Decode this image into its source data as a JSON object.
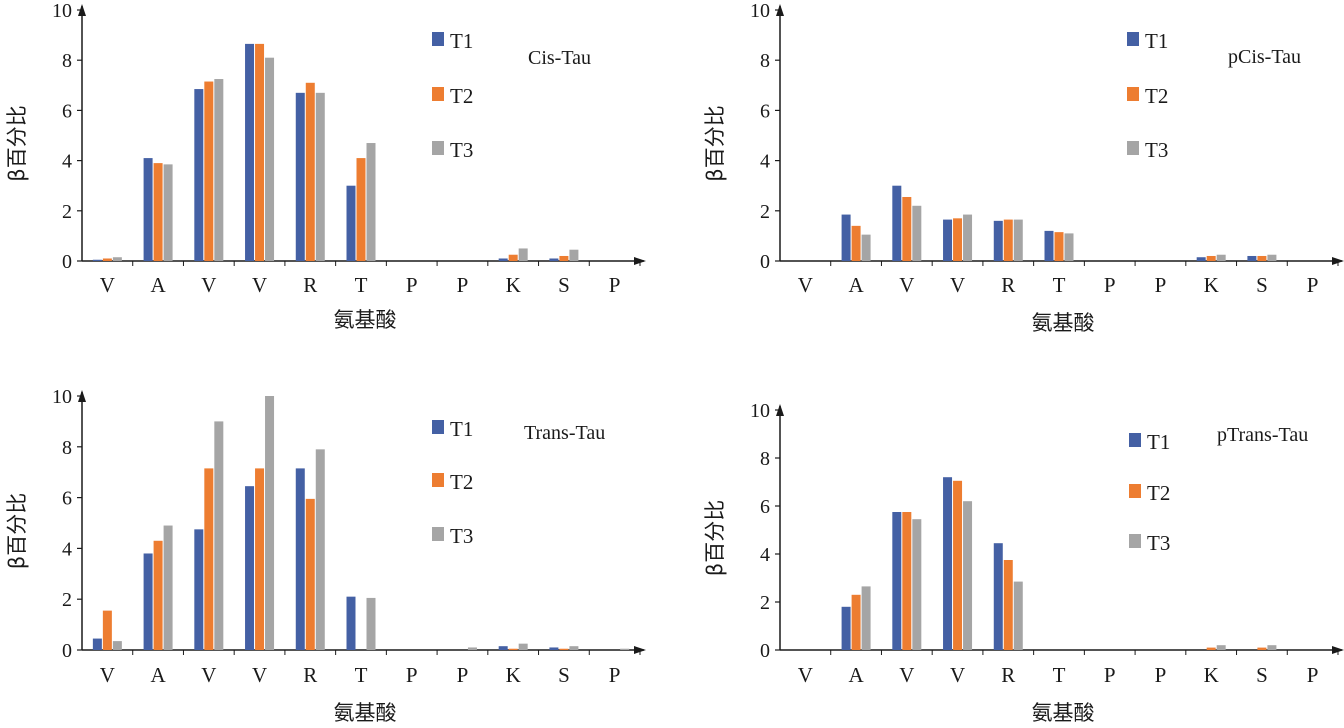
{
  "colors": {
    "T1": "#4460A4",
    "T2": "#ED7D31",
    "T3": "#A5A5A5",
    "axis": "#1a1a1a"
  },
  "chart_data": [
    {
      "type": "bar",
      "title": "Cis-Tau",
      "xlabel": "氨基酸",
      "ylabel": "β百分比",
      "ylim": [
        0,
        10
      ],
      "yticks": [
        0,
        2,
        4,
        6,
        8,
        10
      ],
      "categories": [
        "V",
        "A",
        "V",
        "V",
        "R",
        "T",
        "P",
        "P",
        "K",
        "S",
        "P"
      ],
      "legend_position": "top-right",
      "series": [
        {
          "name": "T1",
          "values": [
            0.05,
            4.1,
            6.85,
            8.65,
            6.7,
            3.0,
            0,
            0,
            0.1,
            0.1,
            0
          ]
        },
        {
          "name": "T2",
          "values": [
            0.1,
            3.9,
            7.15,
            8.65,
            7.1,
            4.1,
            0,
            0,
            0.25,
            0.2,
            0
          ]
        },
        {
          "name": "T3",
          "values": [
            0.15,
            3.85,
            7.25,
            8.1,
            6.7,
            4.7,
            0,
            0,
            0.5,
            0.45,
            0
          ]
        }
      ]
    },
    {
      "type": "bar",
      "title": "pCis-Tau",
      "xlabel": "氨基酸",
      "ylabel": "β百分比",
      "ylim": [
        0,
        10
      ],
      "yticks": [
        0,
        2,
        4,
        6,
        8,
        10
      ],
      "categories": [
        "V",
        "A",
        "V",
        "V",
        "R",
        "T",
        "P",
        "P",
        "K",
        "S",
        "P"
      ],
      "legend_position": "top-right",
      "series": [
        {
          "name": "T1",
          "values": [
            0,
            1.85,
            3.0,
            1.65,
            1.6,
            1.2,
            0,
            0,
            0.15,
            0.2,
            0
          ]
        },
        {
          "name": "T2",
          "values": [
            0,
            1.4,
            2.55,
            1.7,
            1.65,
            1.15,
            0,
            0,
            0.2,
            0.2,
            0
          ]
        },
        {
          "name": "T3",
          "values": [
            0,
            1.05,
            2.2,
            1.85,
            1.65,
            1.1,
            0,
            0,
            0.25,
            0.25,
            0
          ]
        }
      ]
    },
    {
      "type": "bar",
      "title": "Trans-Tau",
      "xlabel": "氨基酸",
      "ylabel": "β百分比",
      "ylim": [
        0,
        10
      ],
      "yticks": [
        0,
        2,
        4,
        6,
        8,
        10
      ],
      "categories": [
        "V",
        "A",
        "V",
        "V",
        "R",
        "T",
        "P",
        "P",
        "K",
        "S",
        "P"
      ],
      "legend_position": "top-right",
      "series": [
        {
          "name": "T1",
          "values": [
            0.45,
            3.8,
            4.75,
            6.45,
            7.15,
            2.1,
            0,
            0,
            0.15,
            0.1,
            0
          ]
        },
        {
          "name": "T2",
          "values": [
            1.55,
            4.3,
            7.15,
            7.15,
            5.95,
            0,
            0,
            0,
            0.05,
            0.05,
            0
          ]
        },
        {
          "name": "T3",
          "values": [
            0.35,
            4.9,
            9.0,
            10.0,
            7.9,
            2.05,
            0,
            0.1,
            0.25,
            0.15,
            0.05
          ]
        }
      ]
    },
    {
      "type": "bar",
      "title": "pTrans-Tau",
      "xlabel": "氨基酸",
      "ylabel": "β百分比",
      "ylim": [
        0,
        10
      ],
      "yticks": [
        0,
        2,
        4,
        6,
        8,
        10
      ],
      "categories": [
        "V",
        "A",
        "V",
        "V",
        "R",
        "T",
        "P",
        "P",
        "K",
        "S",
        "P"
      ],
      "legend_position": "top-right",
      "series": [
        {
          "name": "T1",
          "values": [
            0,
            1.8,
            5.75,
            7.2,
            4.45,
            0,
            0,
            0,
            0,
            0,
            0
          ]
        },
        {
          "name": "T2",
          "values": [
            0,
            2.3,
            5.75,
            7.05,
            3.75,
            0,
            0,
            0,
            0.1,
            0.1,
            0
          ]
        },
        {
          "name": "T3",
          "values": [
            0,
            2.65,
            5.45,
            6.2,
            2.85,
            0,
            0,
            0,
            0.2,
            0.2,
            0
          ]
        }
      ]
    }
  ]
}
